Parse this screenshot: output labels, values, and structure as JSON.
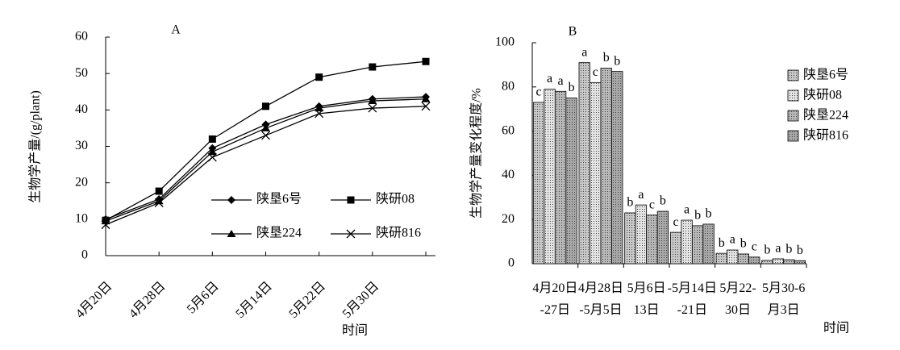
{
  "chart_data": [
    {
      "type": "line",
      "title": "A",
      "xlabel": "时间",
      "ylabel": "生物学产量/(g/plant)",
      "categories": [
        "4月20日",
        "4月28日",
        "5月6日",
        "5月14日",
        "5月22日",
        "5月30日",
        null
      ],
      "ylim": [
        0,
        60
      ],
      "yticks": [
        0,
        10,
        20,
        30,
        40,
        50,
        60
      ],
      "series": [
        {
          "name": "陕垦6号",
          "color": "#000000",
          "marker": "diamond",
          "values": [
            10,
            15.5,
            29.5,
            36,
            41,
            43,
            43.6
          ]
        },
        {
          "name": "陕研08",
          "color": "#000000",
          "marker": "square",
          "values": [
            9.7,
            17.7,
            32,
            41,
            49,
            51.8,
            53.3
          ]
        },
        {
          "name": "陕垦224",
          "color": "#000000",
          "marker": "triangle",
          "values": [
            9.5,
            15,
            28.5,
            35,
            40.5,
            42.5,
            43
          ]
        },
        {
          "name": "陕研816",
          "color": "#000000",
          "marker": "x",
          "values": [
            8.5,
            14.5,
            27,
            33,
            39,
            40.5,
            41
          ]
        }
      ]
    },
    {
      "type": "bar",
      "title": "B",
      "xlabel": "时间",
      "ylabel": "生物学产量变化程度/%",
      "categories": [
        "4月20日\n-27日",
        "4月28日\n-5月5日",
        "5月6日\n13日",
        "-5月14日\n-21日",
        "5月22-\n30日",
        "5月30-6\n月3日"
      ],
      "ylim": [
        0,
        100
      ],
      "yticks": [
        0,
        20,
        40,
        60,
        80,
        100
      ],
      "series": [
        {
          "name": "陕垦6号",
          "color": "#c8c8c8",
          "values": [
            73,
            91,
            23,
            14.2,
            4.7,
            1.5
          ],
          "letters": [
            "c",
            "a",
            "b",
            "c",
            "b",
            "b"
          ]
        },
        {
          "name": "陕研08",
          "color": "#e4e4e4",
          "values": [
            79,
            82,
            26.6,
            19.7,
            6.2,
            2.2
          ],
          "letters": [
            "a",
            "c",
            "a",
            "a",
            "a",
            "a"
          ]
        },
        {
          "name": "陕垦224",
          "color": "#b8b8b8",
          "values": [
            78,
            88.5,
            22,
            17.2,
            4.4,
            1.8
          ],
          "letters": [
            "a",
            "b",
            "c",
            "b",
            "b",
            "b"
          ]
        },
        {
          "name": "陕研816",
          "color": "#a8a8a8",
          "values": [
            75,
            87,
            23.7,
            17.9,
            3,
            1.4
          ],
          "letters": [
            "b",
            "b",
            "b",
            "b",
            "c",
            "b"
          ]
        }
      ]
    }
  ]
}
